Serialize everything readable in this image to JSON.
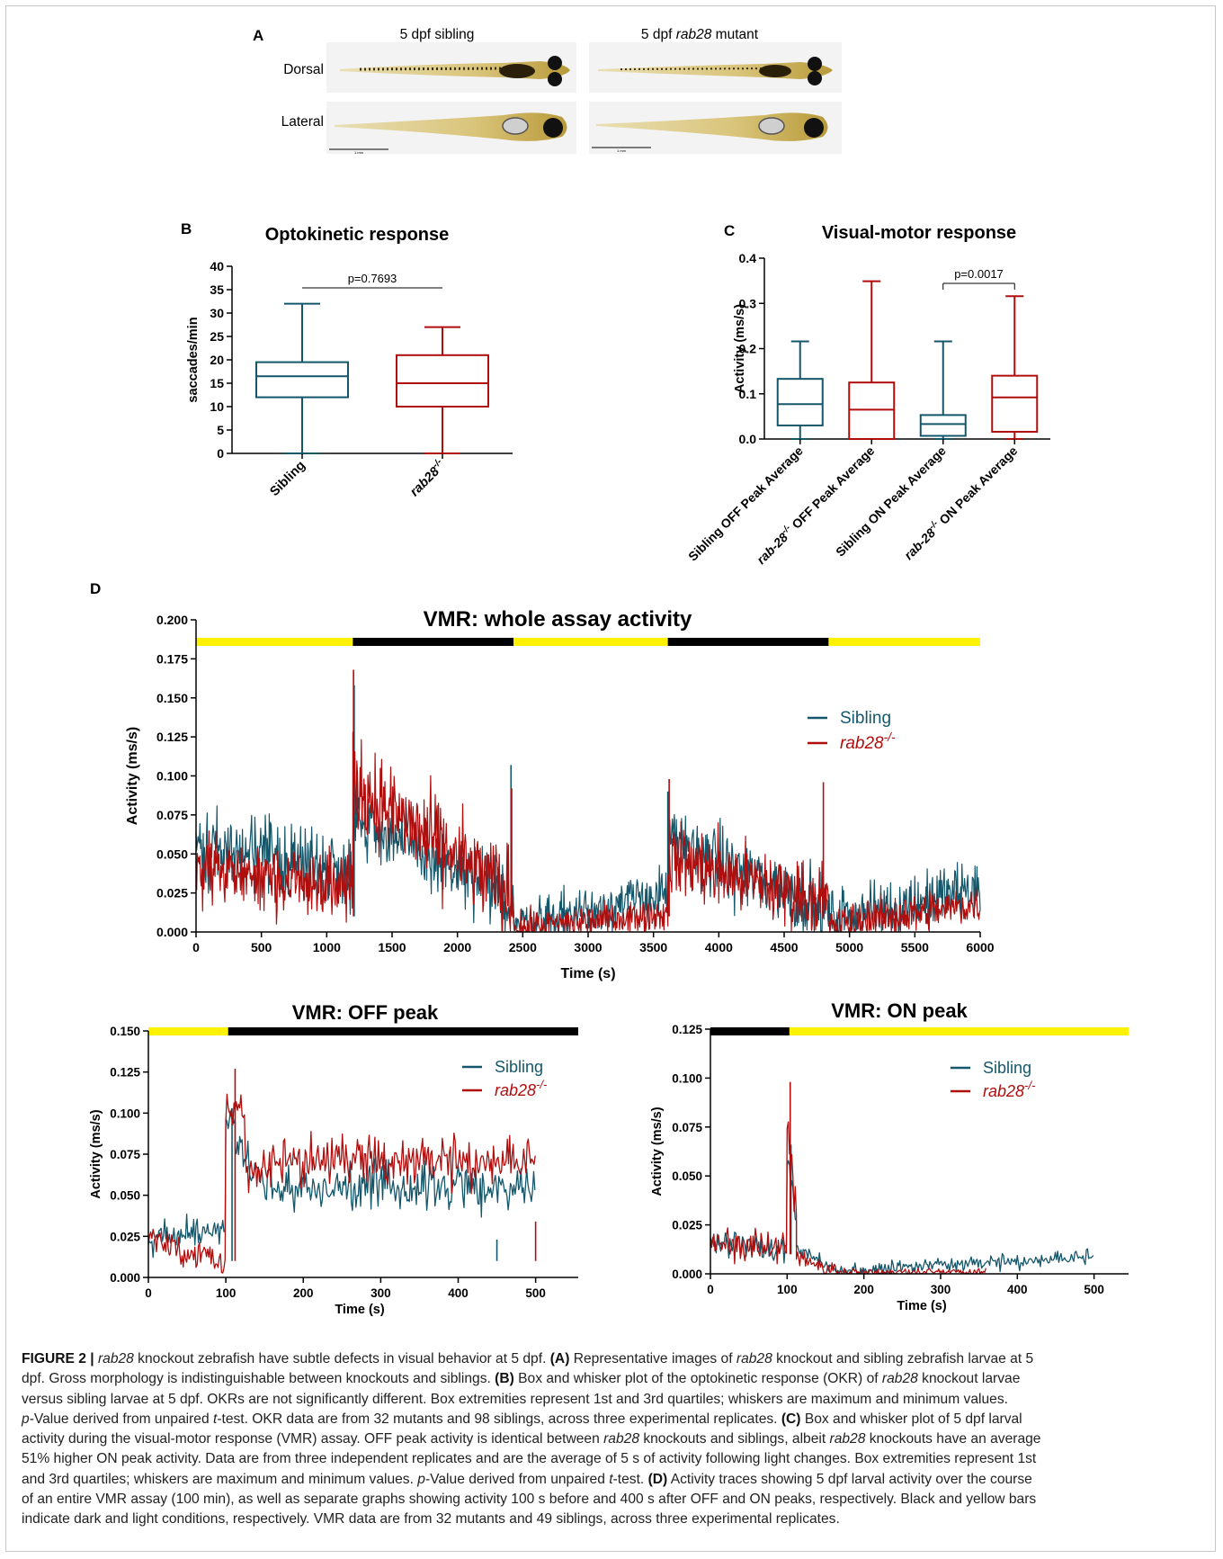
{
  "colors": {
    "sibling": "#14576b",
    "mutant": "#b00d0d",
    "light_bar": "#fff200",
    "dark_bar": "#000000"
  },
  "panelA": {
    "letter": "A",
    "col1": "5 dpf sibling",
    "col2_prefix": "5 dpf ",
    "col2_italic": "rab28",
    "col2_suffix": " mutant",
    "row1": "Dorsal",
    "row2": "Lateral",
    "scalebar1": "1 mm",
    "scalebar2": "1 mm"
  },
  "chart_data": [
    {
      "id": "B",
      "type": "box",
      "letter": "B",
      "title": "Optokinetic response",
      "ylabel": "saccades/min",
      "ylim": [
        0,
        40
      ],
      "yticks": [
        0,
        5,
        10,
        15,
        20,
        25,
        30,
        35,
        40
      ],
      "categories": [
        "Sibling",
        "rab28-/-"
      ],
      "category_labels": [
        {
          "base": "Sibling",
          "sup": ""
        },
        {
          "base": "rab28",
          "sup": "-/-"
        }
      ],
      "series": [
        {
          "name": "Sibling",
          "min": 0,
          "q1": 12,
          "median": 16.5,
          "q3": 19.5,
          "max": 32
        },
        {
          "name": "rab28-/-",
          "min": 0,
          "q1": 10,
          "median": 15,
          "q3": 21,
          "max": 27
        }
      ],
      "annotation": "p=0.7693"
    },
    {
      "id": "C",
      "type": "box",
      "letter": "C",
      "title": "Visual-motor response",
      "ylabel": "Activity (ms/s)",
      "ylim": [
        0,
        0.4
      ],
      "yticks": [
        "0.0",
        "0.1",
        "0.2",
        "0.3",
        "0.4"
      ],
      "categories": [
        "Sibling OFF Peak Average",
        "rab-28-/- OFF Peak Average",
        "Sibling ON Peak Average",
        "rab-28-/- ON Peak Average"
      ],
      "category_labels": [
        {
          "base": "Sibling OFF Peak Average",
          "pre": "",
          "sup": ""
        },
        {
          "pre": "rab-28",
          "sup": "-/-",
          "base": " OFF Peak Average"
        },
        {
          "base": "Sibling ON Peak Average",
          "pre": "",
          "sup": ""
        },
        {
          "pre": "rab-28",
          "sup": "-/-",
          "base": " ON Peak Average"
        }
      ],
      "series": [
        {
          "name": "Sibling OFF Peak Average",
          "min": 0,
          "q1": 0.03,
          "median": 0.077,
          "q3": 0.133,
          "max": 0.216
        },
        {
          "name": "rab-28-/- OFF Peak Average",
          "min": 0,
          "q1": 0,
          "median": 0.065,
          "q3": 0.125,
          "max": 0.349
        },
        {
          "name": "Sibling ON Peak Average",
          "min": 0,
          "q1": 0.007,
          "median": 0.033,
          "q3": 0.053,
          "max": 0.216
        },
        {
          "name": "rab-28-/- ON Peak Average",
          "min": 0,
          "q1": 0.016,
          "median": 0.092,
          "q3": 0.14,
          "max": 0.316
        }
      ],
      "annotation": "p=0.0017"
    },
    {
      "id": "D1",
      "type": "line",
      "letter": "D",
      "title": "VMR: whole assay activity",
      "xlabel": "Time (s)",
      "ylabel": "Activity (ms/s)",
      "xlim": [
        0,
        6000
      ],
      "ylim": [
        0,
        0.2
      ],
      "xticks": [
        0,
        500,
        1000,
        1500,
        2000,
        2500,
        3000,
        3500,
        4000,
        4500,
        5000,
        5500,
        6000
      ],
      "yticks": [
        "0.000",
        "0.025",
        "0.050",
        "0.075",
        "0.100",
        "0.125",
        "0.150",
        "0.175",
        "0.200"
      ],
      "light_bars": [
        {
          "start": 0,
          "end": 1200,
          "state": "light"
        },
        {
          "start": 1200,
          "end": 2430,
          "state": "dark"
        },
        {
          "start": 2430,
          "end": 3610,
          "state": "light"
        },
        {
          "start": 3610,
          "end": 4840,
          "state": "dark"
        },
        {
          "start": 4840,
          "end": 6030,
          "state": "light"
        }
      ],
      "legend": [
        {
          "base": "Sibling",
          "sup": ""
        },
        {
          "base": "rab28",
          "sup": "-/-"
        }
      ],
      "series": [
        {
          "name": "Sibling",
          "segments": [
            {
              "t0": 0,
              "t1": 1200,
              "v0": 0.055,
              "v1": 0.04,
              "noise": 0.018
            },
            {
              "t0": 1200,
              "t1": 2430,
              "v0": 0.075,
              "v1": 0.018,
              "noise": 0.017
            },
            {
              "t0": 2430,
              "t1": 3610,
              "v0": 0.004,
              "v1": 0.025,
              "noise": 0.012
            },
            {
              "t0": 3610,
              "t1": 4840,
              "v0": 0.058,
              "v1": 0.015,
              "noise": 0.017
            },
            {
              "t0": 4840,
              "t1": 6000,
              "v0": 0.008,
              "v1": 0.028,
              "noise": 0.014
            }
          ],
          "spikes": [
            {
              "t": 1210,
              "v": 0.158
            },
            {
              "t": 2410,
              "v": 0.107
            },
            {
              "t": 3610,
              "v": 0.09
            }
          ]
        },
        {
          "name": "rab28-/-",
          "segments": [
            {
              "t0": 0,
              "t1": 1200,
              "v0": 0.038,
              "v1": 0.032,
              "noise": 0.017
            },
            {
              "t0": 1200,
              "t1": 2430,
              "v0": 0.095,
              "v1": 0.022,
              "noise": 0.022
            },
            {
              "t0": 2430,
              "t1": 3610,
              "v0": 0.002,
              "v1": 0.012,
              "noise": 0.008
            },
            {
              "t0": 3610,
              "t1": 4840,
              "v0": 0.048,
              "v1": 0.018,
              "noise": 0.018
            },
            {
              "t0": 4840,
              "t1": 6000,
              "v0": 0.004,
              "v1": 0.018,
              "noise": 0.01
            }
          ],
          "spikes": [
            {
              "t": 1205,
              "v": 0.168
            },
            {
              "t": 2415,
              "v": 0.092
            },
            {
              "t": 3620,
              "v": 0.098
            },
            {
              "t": 4800,
              "v": 0.096
            }
          ]
        }
      ]
    },
    {
      "id": "D2",
      "type": "line",
      "title": "VMR: OFF peak",
      "xlabel": "Time (s)",
      "ylabel": "Activity (ms/s)",
      "xlim": [
        0,
        555
      ],
      "ylim": [
        0,
        0.15
      ],
      "xticks": [
        0,
        100,
        200,
        300,
        400,
        500
      ],
      "yticks": [
        "0.000",
        "0.025",
        "0.050",
        "0.075",
        "0.100",
        "0.125",
        "0.150"
      ],
      "light_bars": [
        {
          "start": 0,
          "end": 103,
          "state": "light"
        },
        {
          "start": 103,
          "end": 555,
          "state": "dark"
        }
      ],
      "legend": [
        {
          "base": "Sibling",
          "sup": ""
        },
        {
          "base": "rab28",
          "sup": "-/-"
        }
      ],
      "series": [
        {
          "name": "Sibling",
          "segments": [
            {
              "t0": 0,
              "t1": 100,
              "v0": 0.022,
              "v1": 0.03,
              "noise": 0.007
            },
            {
              "t0": 100,
              "t1": 112,
              "v0": 0.1,
              "v1": 0.095,
              "noise": 0.006
            },
            {
              "t0": 112,
              "t1": 160,
              "v0": 0.08,
              "v1": 0.055,
              "noise": 0.01
            },
            {
              "t0": 160,
              "t1": 500,
              "v0": 0.055,
              "v1": 0.055,
              "noise": 0.011
            }
          ],
          "spikes": [
            {
              "t": 450,
              "v": 0.023
            },
            {
              "t": 108,
              "v": 0.103
            }
          ]
        },
        {
          "name": "rab28-/-",
          "segments": [
            {
              "t0": 0,
              "t1": 100,
              "v0": 0.025,
              "v1": 0.01,
              "noise": 0.008
            },
            {
              "t0": 100,
              "t1": 125,
              "v0": 0.105,
              "v1": 0.1,
              "noise": 0.01
            },
            {
              "t0": 125,
              "t1": 180,
              "v0": 0.065,
              "v1": 0.068,
              "noise": 0.01
            },
            {
              "t0": 180,
              "t1": 500,
              "v0": 0.07,
              "v1": 0.068,
              "noise": 0.012
            }
          ],
          "spikes": [
            {
              "t": 112,
              "v": 0.127
            },
            {
              "t": 500,
              "v": 0.034
            }
          ]
        }
      ]
    },
    {
      "id": "D3",
      "type": "line",
      "title": "VMR: ON peak",
      "xlabel": "Time (s)",
      "ylabel": "Activity (ms/s)",
      "xlim": [
        0,
        545
      ],
      "ylim": [
        0,
        0.125
      ],
      "xticks": [
        0,
        100,
        200,
        300,
        400,
        500
      ],
      "yticks": [
        "0.000",
        "0.025",
        "0.050",
        "0.075",
        "0.100",
        "0.125"
      ],
      "light_bars": [
        {
          "start": 0,
          "end": 103,
          "state": "dark"
        },
        {
          "start": 103,
          "end": 545,
          "state": "light"
        }
      ],
      "legend": [
        {
          "base": "Sibling",
          "sup": ""
        },
        {
          "base": "rab28",
          "sup": "-/-"
        }
      ],
      "series": [
        {
          "name": "Sibling",
          "segments": [
            {
              "t0": 0,
              "t1": 100,
              "v0": 0.016,
              "v1": 0.013,
              "noise": 0.006
            },
            {
              "t0": 100,
              "t1": 112,
              "v0": 0.06,
              "v1": 0.03,
              "noise": 0.006
            },
            {
              "t0": 112,
              "t1": 160,
              "v0": 0.012,
              "v1": 0.002,
              "noise": 0.003
            },
            {
              "t0": 160,
              "t1": 500,
              "v0": 0.001,
              "v1": 0.008,
              "noise": 0.003
            }
          ],
          "spikes": [
            {
              "t": 105,
              "v": 0.066
            }
          ]
        },
        {
          "name": "rab28-/-",
          "segments": [
            {
              "t0": 0,
              "t1": 100,
              "v0": 0.017,
              "v1": 0.012,
              "noise": 0.006
            },
            {
              "t0": 100,
              "t1": 112,
              "v0": 0.075,
              "v1": 0.03,
              "noise": 0.008
            },
            {
              "t0": 112,
              "t1": 170,
              "v0": 0.008,
              "v1": 0.001,
              "noise": 0.003
            },
            {
              "t0": 170,
              "t1": 360,
              "v0": 0.001,
              "v1": 0.001,
              "noise": 0.0015
            }
          ],
          "spikes": [
            {
              "t": 104,
              "v": 0.098
            }
          ]
        }
      ]
    }
  ],
  "caption": {
    "lines": [
      [
        {
          "t": "FIGURE 2 | ",
          "b": true
        },
        {
          "t": "rab28",
          "i": true
        },
        {
          "t": " knockout zebrafish have subtle defects in visual behavior at 5 dpf. "
        },
        {
          "t": "(A)",
          "b": true
        },
        {
          "t": " Representative images of "
        },
        {
          "t": "rab28",
          "i": true
        },
        {
          "t": " knockout and sibling zebrafish larvae at 5"
        }
      ],
      [
        {
          "t": "dpf. Gross morphology is indistinguishable between knockouts and siblings. "
        },
        {
          "t": "(B)",
          "b": true
        },
        {
          "t": " Box and whisker plot of the optokinetic response (OKR) of "
        },
        {
          "t": "rab28",
          "i": true
        },
        {
          "t": " knockout larvae"
        }
      ],
      [
        {
          "t": "versus sibling larvae at 5 dpf. OKRs are not significantly different. Box extremities represent 1st and 3rd quartiles; whiskers are maximum and minimum values."
        }
      ],
      [
        {
          "t": "p",
          "i": true
        },
        {
          "t": "-Value derived from unpaired "
        },
        {
          "t": "t",
          "i": true
        },
        {
          "t": "-test. OKR data are from 32 mutants and 98 siblings, across three experimental replicates. "
        },
        {
          "t": "(C)",
          "b": true
        },
        {
          "t": " Box and whisker plot of 5 dpf larval"
        }
      ],
      [
        {
          "t": "activity during the visual-motor response (VMR) assay. OFF peak activity is identical between "
        },
        {
          "t": "rab28",
          "i": true
        },
        {
          "t": " knockouts and siblings, albeit "
        },
        {
          "t": "rab28",
          "i": true
        },
        {
          "t": " knockouts have an average"
        }
      ],
      [
        {
          "t": "51% higher ON peak activity. Data are from three independent replicates and are the average of 5 s of activity following light changes. Box extremities represent 1st"
        }
      ],
      [
        {
          "t": "and 3rd quartiles; whiskers are maximum and minimum values. "
        },
        {
          "t": "p",
          "i": true
        },
        {
          "t": "-Value derived from unpaired "
        },
        {
          "t": "t",
          "i": true
        },
        {
          "t": "-test. "
        },
        {
          "t": "(D)",
          "b": true
        },
        {
          "t": " Activity traces showing 5 dpf larval activity over the course"
        }
      ],
      [
        {
          "t": "of an entire VMR assay (100 min), as well as separate graphs showing activity 100 s before and 400 s after OFF and ON peaks, respectively. Black and yellow bars"
        }
      ],
      [
        {
          "t": "indicate dark and light conditions, respectively. VMR data are from 32 mutants and 49 siblings, across three experimental replicates."
        }
      ]
    ]
  }
}
